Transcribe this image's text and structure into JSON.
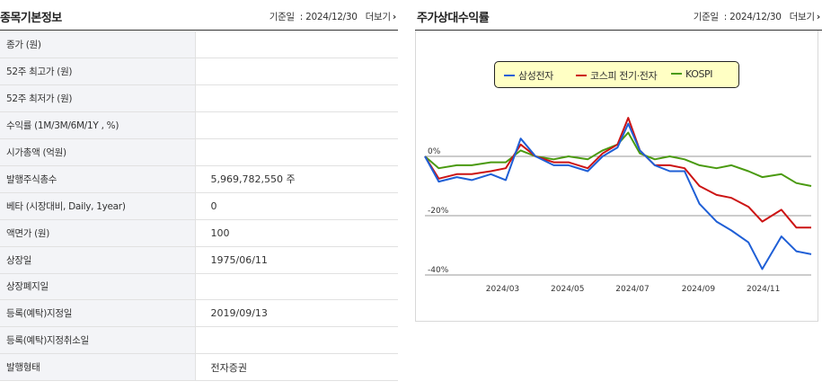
{
  "basic_info": {
    "title": "종목기본정보",
    "base_date_label": "기준일",
    "base_date": "2024/12/30",
    "more_label": "더보기",
    "rows": [
      {
        "label": "종가 (원)",
        "value": ""
      },
      {
        "label": "52주 최고가 (원)",
        "value": ""
      },
      {
        "label": "52주 최저가 (원)",
        "value": ""
      },
      {
        "label": "수익률 (1M/3M/6M/1Y , %)",
        "value": ""
      },
      {
        "label": "시가총액 (억원)",
        "value": ""
      },
      {
        "label": "발행주식총수",
        "value": "5,969,782,550 주"
      },
      {
        "label": "베타 (시장대비, Daily, 1year)",
        "value": "0"
      },
      {
        "label": "액면가 (원)",
        "value": "100"
      },
      {
        "label": "상장일",
        "value": "1975/06/11"
      },
      {
        "label": "상장폐지일",
        "value": ""
      },
      {
        "label": "등록(예탁)지정일",
        "value": "2019/09/13"
      },
      {
        "label": "등록(예탁)지정취소일",
        "value": ""
      },
      {
        "label": "발행형태",
        "value": "전자증권"
      }
    ]
  },
  "relative_return": {
    "title": "주가상대수익률",
    "base_date_label": "기준일",
    "base_date": "2024/12/30",
    "more_label": "더보기"
  },
  "chart_data": {
    "type": "line",
    "title": "주가상대수익률",
    "xlabel": "",
    "ylabel": "",
    "ylim": [
      -40,
      0
    ],
    "yticks": [
      {
        "value": 0,
        "label": "0%"
      },
      {
        "value": -20,
        "label": "-20%"
      },
      {
        "value": -40,
        "label": "-40%"
      }
    ],
    "xticks": [
      "2024/03",
      "2024/05",
      "2024/07",
      "2024/09",
      "2024/11"
    ],
    "legend_position": "top-center",
    "x": [
      "2024/01/02",
      "2024/01/15",
      "2024/02/01",
      "2024/02/15",
      "2024/03/04",
      "2024/03/18",
      "2024/04/01",
      "2024/04/15",
      "2024/05/02",
      "2024/05/16",
      "2024/06/03",
      "2024/06/17",
      "2024/07/01",
      "2024/07/11",
      "2024/07/22",
      "2024/08/05",
      "2024/08/19",
      "2024/09/02",
      "2024/09/16",
      "2024/10/02",
      "2024/10/16",
      "2024/11/01",
      "2024/11/14",
      "2024/12/02",
      "2024/12/16",
      "2024/12/30"
    ],
    "series": [
      {
        "name": "삼성전자",
        "color": "#1f5fd6",
        "values": [
          0,
          -8.5,
          -7,
          -8,
          -6,
          -8,
          6,
          0,
          -3,
          -3,
          -5,
          0,
          3,
          11,
          2,
          -3,
          -5,
          -5,
          -16,
          -22,
          -25,
          -29,
          -38,
          -27,
          -32,
          -33
        ]
      },
      {
        "name": "코스피 전기·전자",
        "color": "#cc1414",
        "values": [
          0,
          -7.5,
          -6,
          -6,
          -5,
          -4,
          4,
          0,
          -2,
          -2,
          -4,
          1,
          4,
          13,
          2,
          -3,
          -3,
          -4,
          -10,
          -13,
          -14,
          -17,
          -22,
          -18,
          -24,
          -24
        ]
      },
      {
        "name": "KOSPI",
        "color": "#4a9a10",
        "values": [
          0,
          -4,
          -3,
          -3,
          -2,
          -2,
          2,
          0,
          -1,
          0,
          -1,
          2,
          4,
          8,
          1,
          -1,
          0,
          -1,
          -3,
          -4,
          -3,
          -5,
          -7,
          -6,
          -9,
          -10
        ]
      }
    ]
  }
}
